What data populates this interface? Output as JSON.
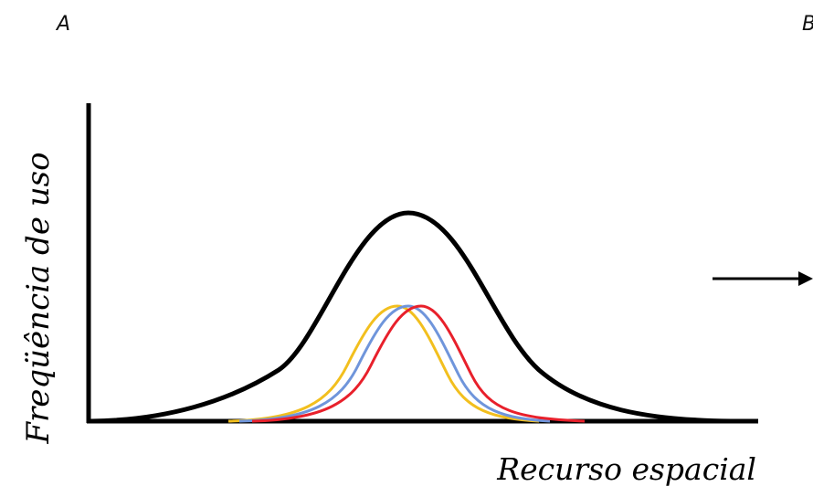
{
  "panels": {
    "a_label": "A",
    "b_label": "B"
  },
  "axes": {
    "x_label": "Recurso espacial",
    "y_label": "Freqüência de uso"
  },
  "colors": {
    "axis": "#000000",
    "total_curve": "#000000",
    "curve_yellow": "#f2bf1e",
    "curve_blue": "#6f95db",
    "curve_red": "#e8202b"
  },
  "icons": {
    "arrow": "right-arrow-icon"
  }
}
